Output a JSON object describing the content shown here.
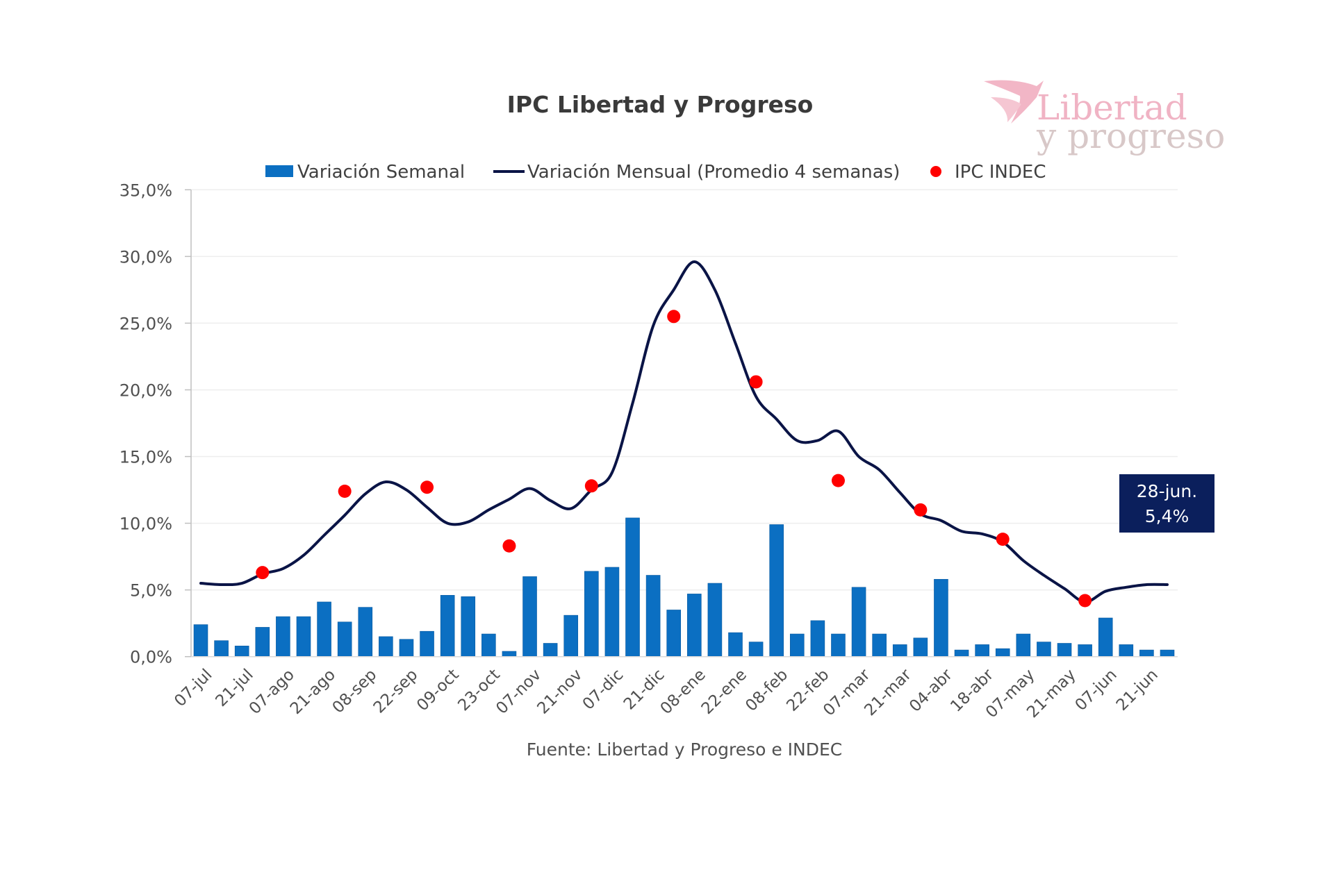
{
  "chart_data": {
    "type": "bar",
    "title": "IPC Libertad y Progreso",
    "xlabel": "",
    "ylabel": "",
    "ylim": [
      0,
      35
    ],
    "y_ticks": [
      "0,0%",
      "5,0%",
      "10,0%",
      "15,0%",
      "20,0%",
      "25,0%",
      "30,0%",
      "35,0%"
    ],
    "y_tick_values": [
      0,
      5,
      10,
      15,
      20,
      25,
      30,
      35
    ],
    "grid": true,
    "legend_position": "top",
    "x_tick_labels": [
      "07-jul",
      "21-jul",
      "07-ago",
      "21-ago",
      "08-sep",
      "22-sep",
      "09-oct",
      "23-oct",
      "07-nov",
      "21-nov",
      "07-dic",
      "21-dic",
      "08-ene",
      "22-ene",
      "08-feb",
      "22-feb",
      "07-mar",
      "21-mar",
      "04-abr",
      "18-abr",
      "07-may",
      "21-may",
      "07-jun",
      "21-jun"
    ],
    "series": [
      {
        "name": "Variación Semanal",
        "type": "bar",
        "color": "#0b6fc2",
        "values": [
          2.4,
          1.2,
          0.8,
          2.2,
          3.0,
          3.0,
          4.1,
          2.6,
          3.7,
          1.5,
          1.3,
          1.9,
          4.6,
          4.5,
          1.7,
          0.4,
          6.0,
          1.0,
          3.1,
          6.4,
          6.7,
          10.4,
          6.1,
          3.5,
          4.7,
          5.5,
          1.8,
          1.1,
          9.9,
          1.7,
          2.7,
          1.7,
          5.2,
          1.7,
          0.9,
          1.4,
          5.8,
          0.5,
          0.9,
          0.6,
          1.7,
          1.1,
          1.0,
          0.9,
          2.9,
          0.9,
          0.5,
          0.5
        ]
      },
      {
        "name": "Variación Mensual (Promedio 4 semanas)",
        "type": "line",
        "color": "#0a1446",
        "values": [
          5.5,
          5.4,
          5.5,
          6.2,
          6.6,
          7.6,
          9.1,
          10.6,
          12.2,
          13.1,
          12.5,
          11.2,
          10.0,
          10.1,
          11.0,
          11.8,
          12.6,
          11.7,
          11.1,
          12.5,
          13.8,
          19.0,
          24.8,
          27.5,
          29.6,
          27.5,
          23.5,
          19.5,
          17.8,
          16.2,
          16.2,
          16.9,
          15.0,
          14.0,
          12.3,
          10.7,
          10.2,
          9.4,
          9.2,
          8.6,
          7.2,
          6.1,
          5.1,
          4.1,
          4.9,
          5.2,
          5.4,
          5.4
        ]
      },
      {
        "name": "IPC INDEC",
        "type": "scatter",
        "color": "#ff0000",
        "points": [
          {
            "index": 3,
            "value": 6.3
          },
          {
            "index": 7,
            "value": 12.4
          },
          {
            "index": 11,
            "value": 12.7
          },
          {
            "index": 15,
            "value": 8.3
          },
          {
            "index": 19,
            "value": 12.8
          },
          {
            "index": 23,
            "value": 25.5
          },
          {
            "index": 27,
            "value": 20.6
          },
          {
            "index": 31,
            "value": 13.2
          },
          {
            "index": 35,
            "value": 11.0
          },
          {
            "index": 39,
            "value": 8.8
          },
          {
            "index": 43,
            "value": 4.2
          }
        ]
      }
    ],
    "annotation": {
      "line1": "28-jun.",
      "line2": "5,4%",
      "series": "Variación Mensual (Promedio 4 semanas)",
      "index": 47,
      "value": 5.4
    }
  },
  "source": "Fuente: Libertad y Progreso e INDEC",
  "logo": {
    "line1": "Libertad",
    "line2": "y progreso"
  },
  "colors": {
    "bar": "#0b6fc2",
    "line": "#0a1446",
    "dot": "#ff0000",
    "annotation_bg": "#0b1f5c",
    "grid": "#eeeeee",
    "axis": "#bfbfbf"
  }
}
